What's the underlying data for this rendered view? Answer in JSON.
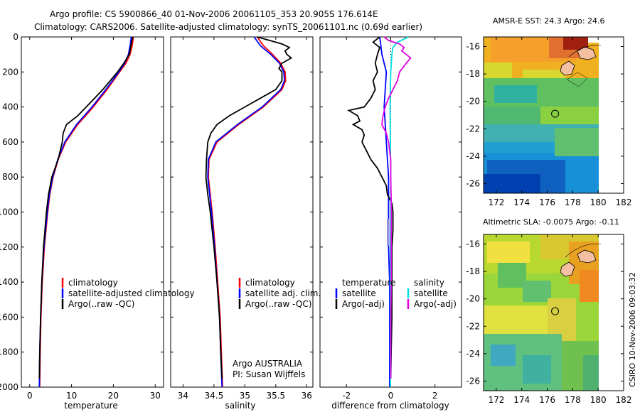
{
  "header": {
    "line1": "Argo profile: CS 5900866_40 01-Nov-2006 20061105_353 20.905S 176.614E",
    "line2": "Climatology: CARS2006. Satellite-adjusted climatology: synTS_20061101.nc (0.69d earlier)"
  },
  "colors": {
    "climatology": "#ff0000",
    "satellite": "#0000ff",
    "argo": "#000000",
    "satellite_diff": "#00e0e0",
    "argo_sal_diff": "#e000e0"
  },
  "chart_data": [
    {
      "type": "line",
      "xlabel": "temperature",
      "ylabel": "",
      "xlim": [
        -2,
        32
      ],
      "ylim": [
        2000,
        0
      ],
      "xticks": [
        "0",
        "10",
        "20",
        "30"
      ],
      "yticks": [
        "0",
        "200",
        "400",
        "600",
        "800",
        "1000",
        "1200",
        "1400",
        "1600",
        "1800",
        "2000"
      ],
      "legend": [
        "climatology",
        "satellite-adjusted climatology",
        "Argo(..raw -QC)"
      ],
      "series": [
        {
          "name": "climatology",
          "pres": [
            0,
            50,
            100,
            150,
            200,
            300,
            400,
            500,
            600,
            700,
            800,
            900,
            1000,
            1200,
            1400,
            1600,
            1800,
            2000
          ],
          "values": [
            24.8,
            24.5,
            24.0,
            23.0,
            21.5,
            18.5,
            15.2,
            11.5,
            8.6,
            6.8,
            5.6,
            4.8,
            4.3,
            3.5,
            3.0,
            2.7,
            2.5,
            2.4
          ]
        },
        {
          "name": "satellite-adjusted climatology",
          "pres": [
            0,
            50,
            100,
            150,
            200,
            300,
            400,
            500,
            600,
            700,
            800,
            900,
            1000,
            1200,
            1400,
            1600,
            1800,
            2000
          ],
          "values": [
            24.3,
            24.0,
            23.6,
            22.7,
            21.3,
            18.2,
            14.9,
            11.2,
            8.4,
            6.7,
            5.5,
            4.7,
            4.2,
            3.4,
            2.9,
            2.6,
            2.4,
            2.3
          ]
        },
        {
          "name": "Argo(..raw -QC)",
          "pres": [
            0,
            50,
            100,
            150,
            200,
            300,
            400,
            450,
            500,
            550,
            600,
            700,
            800,
            900,
            1000,
            1200,
            1400,
            1600,
            1800,
            1950
          ],
          "values": [
            24.6,
            24.2,
            23.8,
            22.5,
            21.0,
            17.5,
            13.5,
            11.5,
            8.8,
            8.0,
            7.8,
            6.8,
            5.3,
            4.5,
            4.0,
            3.3,
            2.9,
            2.6,
            2.4,
            2.3
          ]
        }
      ]
    },
    {
      "type": "line",
      "xlabel": "salinity",
      "xlim": [
        33.8,
        36.1
      ],
      "ylim": [
        2000,
        0
      ],
      "xticks": [
        "34",
        "34.5",
        "35",
        "35.5",
        "36"
      ],
      "legend": [
        "climatology",
        "satellite adj. clim.",
        "Argo(..raw -QC)"
      ],
      "annotation": [
        "Argo AUSTRALIA",
        "PI: Susan Wijffels"
      ],
      "series": [
        {
          "name": "climatology",
          "pres": [
            0,
            50,
            100,
            150,
            200,
            250,
            300,
            400,
            500,
            600,
            700,
            800,
            900,
            1000,
            1200,
            1400,
            1600,
            1800,
            2000
          ],
          "values": [
            35.2,
            35.3,
            35.45,
            35.58,
            35.65,
            35.66,
            35.6,
            35.3,
            34.9,
            34.55,
            34.42,
            34.41,
            34.44,
            34.47,
            34.52,
            34.56,
            34.6,
            34.62,
            34.64
          ]
        },
        {
          "name": "satellite adj. clim.",
          "pres": [
            0,
            50,
            100,
            150,
            200,
            250,
            300,
            400,
            500,
            600,
            700,
            800,
            900,
            1000,
            1200,
            1400,
            1600,
            1800,
            2000
          ],
          "values": [
            35.15,
            35.25,
            35.42,
            35.56,
            35.63,
            35.64,
            35.58,
            35.28,
            34.88,
            34.53,
            34.41,
            34.4,
            34.43,
            34.46,
            34.51,
            34.55,
            34.59,
            34.61,
            34.63
          ]
        },
        {
          "name": "Argo(..raw -QC)",
          "pres": [
            0,
            20,
            40,
            60,
            80,
            100,
            120,
            150,
            180,
            200,
            250,
            300,
            350,
            400,
            450,
            500,
            550,
            600,
            700,
            800,
            900,
            1000,
            1200,
            1400,
            1600,
            1800,
            1950
          ],
          "values": [
            35.2,
            35.4,
            35.6,
            35.72,
            35.65,
            35.68,
            35.75,
            35.6,
            35.55,
            35.6,
            35.6,
            35.5,
            35.25,
            35.0,
            34.75,
            34.55,
            34.45,
            34.4,
            34.38,
            34.37,
            34.4,
            34.44,
            34.5,
            34.55,
            34.59,
            34.61,
            34.63
          ]
        }
      ]
    },
    {
      "type": "line",
      "xlabel": "difference from climatology",
      "xlim": [
        -3.2,
        3.2
      ],
      "ylim": [
        2000,
        0
      ],
      "xticks": [
        "-2",
        "0",
        "2"
      ],
      "legend_left": {
        "title": "temperature",
        "items": [
          "satellite",
          "Argo(-adj)"
        ]
      },
      "legend_right": {
        "title": "salinity",
        "items": [
          "satellite",
          "Argo(-adj)"
        ]
      },
      "series": [
        {
          "name": "temperature satellite",
          "pres": [
            0,
            100,
            200,
            400,
            600,
            800,
            1000,
            1200,
            1400,
            1600,
            1800,
            2000
          ],
          "values": [
            -0.5,
            -0.4,
            -0.2,
            -0.3,
            -0.2,
            -0.1,
            -0.1,
            -0.1,
            -0.05,
            -0.05,
            -0.05,
            -0.05
          ]
        },
        {
          "name": "temperature Argo(-adj)",
          "pres": [
            0,
            30,
            60,
            100,
            150,
            200,
            250,
            300,
            350,
            400,
            420,
            450,
            480,
            500,
            530,
            560,
            600,
            650,
            700,
            750,
            800,
            850,
            900,
            950,
            1000,
            1100,
            1200,
            1400,
            1600,
            1800,
            1950
          ],
          "values": [
            -0.5,
            -0.8,
            -0.5,
            -0.6,
            -0.7,
            -0.6,
            -0.8,
            -0.7,
            -0.9,
            -1.2,
            -1.9,
            -1.5,
            -1.4,
            -1.7,
            -1.3,
            -1.2,
            -1.3,
            -1.1,
            -0.9,
            -0.6,
            -0.4,
            -0.2,
            -0.15,
            0.05,
            0.1,
            0.1,
            0.05,
            0.05,
            0.05,
            0.02,
            0.0
          ]
        },
        {
          "name": "salinity satellite",
          "pres": [
            0,
            30,
            60,
            100,
            200,
            300,
            400,
            600,
            800,
            1000,
            1200,
            1400,
            1600,
            1800,
            2000
          ],
          "values": [
            0.8,
            0.3,
            0.1,
            0.05,
            0.0,
            -0.02,
            -0.03,
            -0.02,
            0.0,
            0.0,
            -0.02,
            -0.02,
            -0.02,
            -0.02,
            -0.02
          ]
        },
        {
          "name": "salinity Argo(-adj)",
          "pres": [
            0,
            20,
            40,
            60,
            80,
            100,
            120,
            150,
            200,
            250,
            300,
            350,
            400,
            450,
            500,
            550,
            600,
            700,
            800,
            1000,
            1200,
            1400,
            1600,
            1800,
            1950
          ],
          "values": [
            -0.3,
            -0.1,
            0.4,
            0.6,
            0.5,
            0.7,
            0.9,
            0.7,
            0.4,
            0.3,
            0.1,
            -0.1,
            -0.25,
            -0.35,
            -0.4,
            -0.2,
            -0.1,
            0.0,
            0.0,
            0.03,
            0.02,
            0.02,
            0.0,
            0.0,
            0.0
          ]
        }
      ]
    },
    {
      "type": "heatmap",
      "title": "AMSR-E SST: 24.3 Argo: 24.6",
      "xlim": [
        171,
        182
      ],
      "ylim": [
        -26.7,
        -15.3
      ],
      "xticks": [
        "172",
        "174",
        "176",
        "178",
        "180",
        "182"
      ],
      "yticks": [
        "-16",
        "-18",
        "-20",
        "-22",
        "-24",
        "-26"
      ],
      "argo_position": [
        176.614,
        -20.905
      ]
    },
    {
      "type": "heatmap",
      "title": "Altimetric SLA: -0.0075 Argo: -0.11",
      "xlim": [
        171,
        182
      ],
      "ylim": [
        -26.7,
        -15.3
      ],
      "xticks": [
        "172",
        "174",
        "176",
        "178",
        "180",
        "182"
      ],
      "yticks": [
        "-16",
        "-18",
        "-20",
        "-22",
        "-24",
        "-26"
      ],
      "argo_position": [
        176.614,
        -20.905
      ]
    }
  ],
  "credit": "CSIRO 10-Nov-2006 09:03:32"
}
